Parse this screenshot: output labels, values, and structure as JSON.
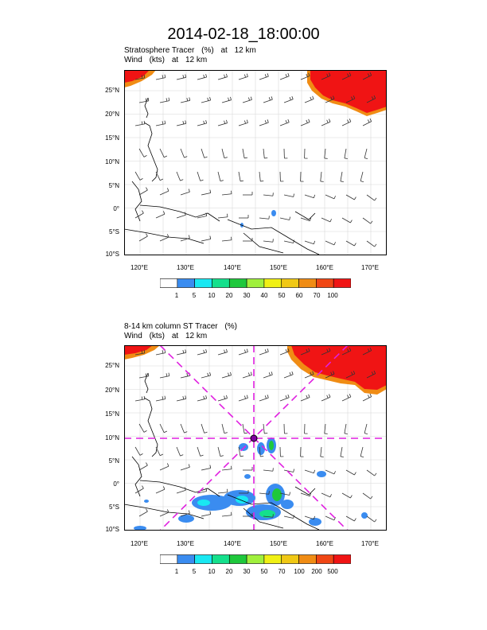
{
  "title": "2014-02-18_18:00:00",
  "panels": [
    {
      "subtitle_field": "Stratosphere Tracer",
      "subtitle_units": "(%)",
      "subtitle_at": "at",
      "subtitle_level": "12 km",
      "wind_label": "Wind",
      "wind_units": "(kts)",
      "wind_at": "at",
      "wind_level": "12 km",
      "lat_labels": [
        "25°N",
        "20°N",
        "15°N",
        "10°N",
        "5°N",
        "0°",
        "5°S",
        "10°S"
      ],
      "lon_labels": [
        "120°E",
        "130°E",
        "140°E",
        "150°E",
        "160°E",
        "170°E"
      ],
      "colorbar_labels": [
        "1",
        "5",
        "10",
        "20",
        "30",
        "40",
        "50",
        "60",
        "70",
        "100"
      ],
      "colorbar_colors": [
        "#ffffff",
        "#3a8cf0",
        "#19e8f2",
        "#14e08c",
        "#1ec83c",
        "#a0f03c",
        "#f0f014",
        "#f0c814",
        "#f08c14",
        "#f04614",
        "#f01414"
      ]
    },
    {
      "subtitle_field": "8-14 km column ST Tracer",
      "subtitle_units": "(%)",
      "subtitle_at": "",
      "subtitle_level": "",
      "wind_label": "Wind",
      "wind_units": "(kts)",
      "wind_at": "at",
      "wind_level": "12 km",
      "lat_labels": [
        "25°N",
        "20°N",
        "15°N",
        "10°N",
        "5°N",
        "0°",
        "5°S",
        "10°S"
      ],
      "lon_labels": [
        "120°E",
        "130°E",
        "140°E",
        "150°E",
        "160°E",
        "170°E"
      ],
      "colorbar_labels": [
        "1",
        "5",
        "10",
        "20",
        "30",
        "50",
        "70",
        "100",
        "200",
        "500"
      ],
      "colorbar_colors": [
        "#ffffff",
        "#3a8cf0",
        "#19e8f2",
        "#14e08c",
        "#1ec83c",
        "#a0f03c",
        "#f0f014",
        "#f0c814",
        "#f08c14",
        "#f04614",
        "#f01414"
      ]
    }
  ],
  "colors": {
    "tracer_high": "#f01414",
    "tracer_edge": "#f08c14",
    "tracer_mid": "#1ec83c",
    "tracer_low": "#3a8cf0",
    "crosshair": "#e020e0",
    "coast": "#000000",
    "grid": "#d8d8d8"
  }
}
